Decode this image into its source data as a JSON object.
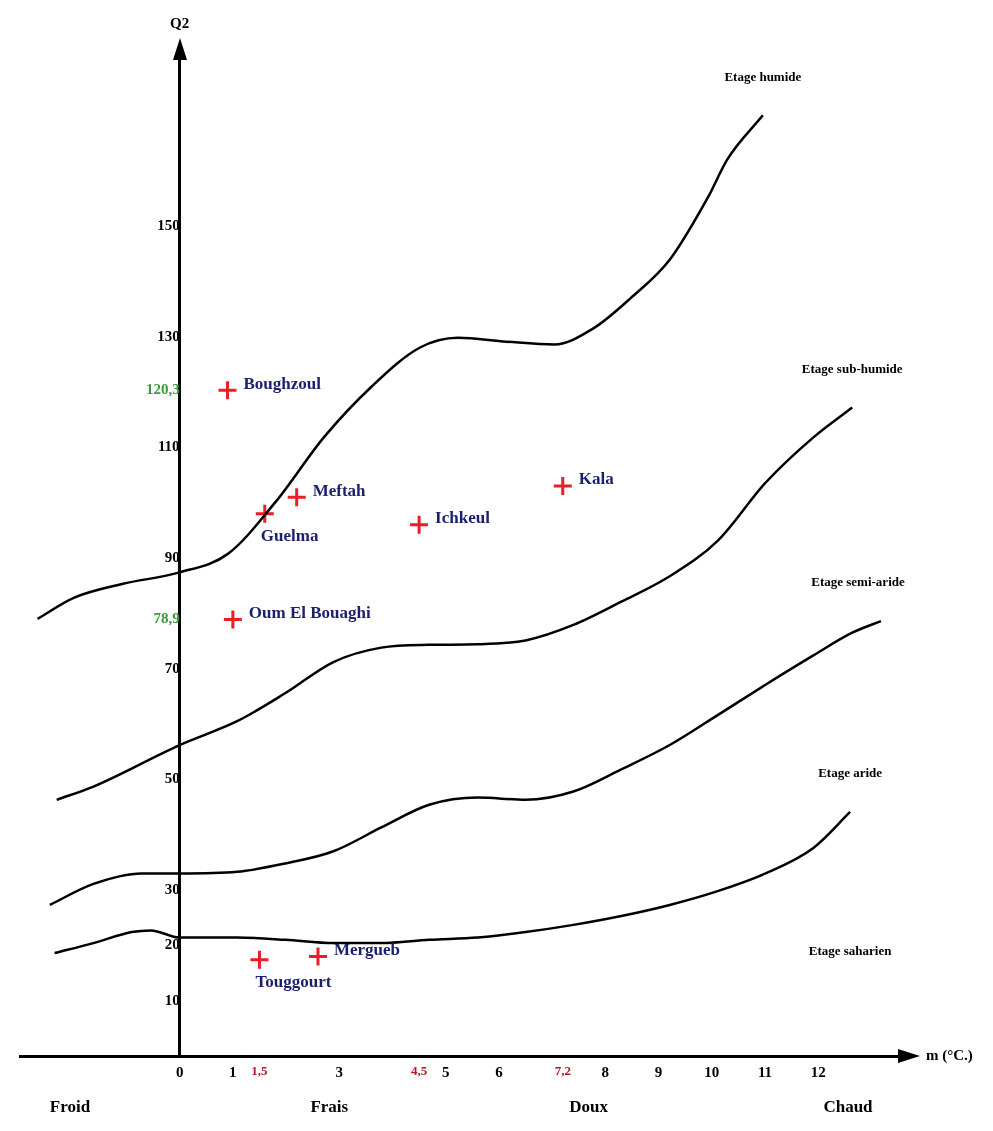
{
  "chart_data": {
    "type": "line",
    "xlabel": "m (°C.)",
    "ylabel": "Q2",
    "xlim": [
      -3,
      13.5
    ],
    "ylim": [
      0,
      180
    ],
    "xticks": [
      0,
      1,
      {
        "value": 1.5,
        "label": "1,5"
      },
      3,
      {
        "value": 4.5,
        "label": "4,5"
      },
      5,
      6,
      {
        "value": 7.2,
        "label": "7,2"
      },
      8,
      9,
      10,
      11,
      12
    ],
    "yticks": [
      10,
      20,
      30,
      50,
      70,
      {
        "value": 78.9,
        "label": "78,9"
      },
      90,
      110,
      {
        "value": 120.3,
        "label": "120,3"
      },
      130,
      150
    ],
    "grid": false,
    "legend": false,
    "marker": "none",
    "line_style": "solid",
    "series": [
      {
        "color": "#000000",
        "x": [
          -2.67,
          -1.99,
          -1.08,
          0,
          0.9,
          1.8,
          2.71,
          3.61,
          4.51,
          5.23,
          6.14,
          7.04,
          7.76,
          8.48,
          9.21,
          9.93,
          10.29,
          10.96
        ],
        "values": [
          79.0,
          82.8,
          85.3,
          87.4,
          90.7,
          100.1,
          111.8,
          121.0,
          128.0,
          129.8,
          129.1,
          128.6,
          131.4,
          137.0,
          143.9,
          155.2,
          162.0,
          170.0
        ]
      },
      {
        "color": "#000000",
        "x": [
          -2.31,
          -1.62,
          0,
          1.08,
          1.99,
          2.89,
          3.79,
          4.69,
          5.6,
          6.5,
          7.4,
          8.3,
          9.21,
          10.11,
          11.01,
          11.91,
          12.64
        ],
        "values": [
          46.3,
          48.7,
          56.2,
          60.5,
          65.6,
          71.2,
          73.8,
          74.3,
          74.4,
          75.1,
          77.9,
          82.1,
          86.7,
          93.1,
          103.6,
          111.8,
          117.2
        ]
      },
      {
        "color": "#000000",
        "x": [
          -2.44,
          -1.62,
          -0.72,
          0,
          1.08,
          1.99,
          2.89,
          3.79,
          4.69,
          5.6,
          6.5,
          7.4,
          8.3,
          9.21,
          10.11,
          11.01,
          11.91,
          12.64,
          13.18
        ],
        "values": [
          27.3,
          31.1,
          33.0,
          33.0,
          33.3,
          34.8,
          37.0,
          41.3,
          45.4,
          46.7,
          46.3,
          47.8,
          51.8,
          56.2,
          61.6,
          67.1,
          72.4,
          76.5,
          78.6
        ]
      },
      {
        "color": "#000000",
        "x": [
          -2.35,
          -1.62,
          -0.9,
          -0.54,
          0,
          1.08,
          1.99,
          2.89,
          3.79,
          4.69,
          5.6,
          6.5,
          7.4,
          8.3,
          9.21,
          10.11,
          11.01,
          11.91,
          12.6
        ],
        "values": [
          18.6,
          20.4,
          22.4,
          22.7,
          21.4,
          21.4,
          21.0,
          20.4,
          20.4,
          21.0,
          21.4,
          22.4,
          23.7,
          25.3,
          27.3,
          29.8,
          33.0,
          37.6,
          44.1
        ]
      },
      {
        "type": "scatter",
        "name": "Boughzoul",
        "color": "#ee1c25",
        "marker": "cross",
        "x": [
          0.9
        ],
        "values": [
          120.3
        ]
      },
      {
        "type": "scatter",
        "name": "Meftah",
        "color": "#ee1c25",
        "marker": "cross",
        "x": [
          2.2
        ],
        "values": [
          101
        ]
      },
      {
        "type": "scatter",
        "name": "Guelma",
        "color": "#ee1c25",
        "marker": "cross",
        "x": [
          1.6
        ],
        "values": [
          98
        ]
      },
      {
        "type": "scatter",
        "name": "Ichkeul",
        "color": "#ee1c25",
        "marker": "cross",
        "x": [
          4.5
        ],
        "values": [
          96
        ]
      },
      {
        "type": "scatter",
        "name": "Kala",
        "color": "#ee1c25",
        "marker": "cross",
        "x": [
          7.2
        ],
        "values": [
          103
        ]
      },
      {
        "type": "scatter",
        "name": "Oum El Bouaghi",
        "color": "#ee1c25",
        "marker": "cross",
        "x": [
          1
        ],
        "values": [
          78.9
        ]
      },
      {
        "type": "scatter",
        "name": "Touggourt",
        "color": "#ee1c25",
        "marker": "cross",
        "x": [
          1.5
        ],
        "values": [
          17.4
        ]
      },
      {
        "type": "scatter",
        "name": "Mergueb",
        "color": "#ee1c25",
        "marker": "cross",
        "x": [
          2.6
        ],
        "values": [
          18
        ]
      }
    ],
    "annotations": [
      "Etage humide",
      "Etage sub-humide",
      "Etage semi-aride",
      "Etage aride",
      "Etage saharien",
      "Froid",
      "Frais",
      "Doux",
      "Chaud"
    ]
  }
}
